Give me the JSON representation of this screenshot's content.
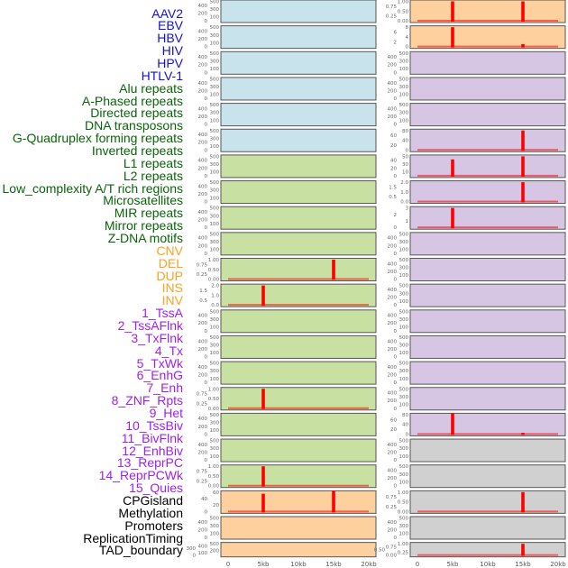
{
  "chart_data": {
    "type": "bar",
    "xlabel": "",
    "x_ticks": [
      "0",
      "5kb",
      "10kb",
      "15kb",
      "20kb"
    ],
    "x_tick_values_kb": [
      0,
      5,
      10,
      15,
      20
    ],
    "xlim_kb": [
      0,
      20
    ],
    "group_colors": {
      "virus": {
        "text": "#1010e0",
        "panel": "#c8e3ec"
      },
      "repeat": {
        "text": "#0a640a",
        "panel": "#c8e0a2"
      },
      "sv": {
        "text": "#ffa020",
        "panel": "#fdd09e"
      },
      "chromhmm": {
        "text": "#a020f0",
        "panel": "#d6c6e3"
      },
      "other": {
        "text": "#000000",
        "panel": "#d0d0d0"
      }
    },
    "bar_color": "#ff0000",
    "columns": [
      [
        {
          "label": "AAV2",
          "group": "virus",
          "ticks": [
            "0",
            "100",
            "200",
            "300",
            "400",
            "500"
          ],
          "ymax": 500,
          "bars": []
        },
        {
          "label": "EBV",
          "group": "virus",
          "ticks": [
            "0",
            "100",
            "200",
            "300",
            "400",
            "500"
          ],
          "ymax": 500,
          "bars": []
        },
        {
          "label": "HBV",
          "group": "virus",
          "ticks": [
            "0",
            "100",
            "200",
            "300",
            "400",
            "500"
          ],
          "ymax": 500,
          "bars": []
        },
        {
          "label": "HIV",
          "group": "virus",
          "ticks": [
            "0",
            "100",
            "200",
            "300",
            "400",
            "500"
          ],
          "ymax": 500,
          "bars": []
        },
        {
          "label": "HPV",
          "group": "virus",
          "ticks": [
            "0",
            "100",
            "200",
            "300",
            "400",
            "500"
          ],
          "ymax": 500,
          "bars": []
        },
        {
          "label": "HTLV-1",
          "group": "virus",
          "ticks": [
            "0",
            "100",
            "200",
            "300",
            "400",
            "500"
          ],
          "ymax": 500,
          "bars": []
        },
        {
          "label": "Alu repeats",
          "group": "repeat",
          "ticks": [
            "0",
            "100",
            "200",
            "300",
            "400",
            "500"
          ],
          "ymax": 500,
          "bars": []
        },
        {
          "label": "A-Phased repeats",
          "group": "repeat",
          "ticks": [
            "0",
            "100",
            "200",
            "300",
            "400",
            "500"
          ],
          "ymax": 500,
          "bars": []
        },
        {
          "label": "Directed repeats",
          "group": "repeat",
          "ticks": [
            "0",
            "100",
            "200",
            "300",
            "400",
            "500"
          ],
          "ymax": 500,
          "bars": []
        },
        {
          "label": "DNA transposons",
          "group": "repeat",
          "ticks": [
            "0",
            "100",
            "200",
            "300",
            "400",
            "500"
          ],
          "ymax": 500,
          "bars": []
        },
        {
          "label": "G-Quadruplex forming repeats",
          "group": "repeat",
          "ticks": [
            "0.00",
            "0.25",
            "0.50",
            "0.75",
            "1.00"
          ],
          "ymax": 1,
          "bars": [
            [
              15,
              1
            ]
          ]
        },
        {
          "label": "Inverted repeats",
          "group": "repeat",
          "ticks": [
            "0.0",
            "0.5",
            "1.0",
            "1.5",
            "2.0"
          ],
          "ymax": 2,
          "bars": [
            [
              5,
              2
            ]
          ]
        },
        {
          "label": "L1 repeats",
          "group": "repeat",
          "ticks": [
            "0",
            "100",
            "200",
            "300",
            "400",
            "500"
          ],
          "ymax": 500,
          "bars": []
        },
        {
          "label": "L2 repeats",
          "group": "repeat",
          "ticks": [
            "0",
            "100",
            "200",
            "300",
            "400",
            "500"
          ],
          "ymax": 500,
          "bars": []
        },
        {
          "label": "Low_complexity A/T rich regions",
          "group": "repeat",
          "ticks": [
            "0",
            "100",
            "200",
            "300",
            "400",
            "500"
          ],
          "ymax": 500,
          "bars": []
        },
        {
          "label": "Microsatellites",
          "group": "repeat",
          "ticks": [
            "0.00",
            "0.25",
            "0.50",
            "0.75",
            "1.00"
          ],
          "ymax": 1,
          "bars": [
            [
              5,
              1
            ]
          ]
        },
        {
          "label": "MIR repeats",
          "group": "repeat",
          "ticks": [
            "0",
            "100",
            "200",
            "300",
            "400",
            "500"
          ],
          "ymax": 500,
          "bars": []
        },
        {
          "label": "Mirror repeats",
          "group": "repeat",
          "ticks": [
            "0",
            "100",
            "200",
            "300",
            "400",
            "500"
          ],
          "ymax": 500,
          "bars": []
        },
        {
          "label": "Z-DNA motifs",
          "group": "repeat",
          "ticks": [
            "0.00",
            "0.25",
            "0.50",
            "0.75",
            "1.00"
          ],
          "ymax": 1,
          "bars": [
            [
              5,
              1
            ]
          ]
        },
        {
          "label": "CNV",
          "group": "sv",
          "ticks": [
            "0",
            "20",
            "40",
            "60"
          ],
          "ymax": 75,
          "bars": [
            [
              5,
              55
            ],
            [
              15,
              75
            ]
          ]
        },
        {
          "label": "DEL",
          "group": "sv",
          "ticks": [
            "0",
            "100",
            "200",
            "300",
            "400",
            "500"
          ],
          "ymax": 500,
          "bars": []
        },
        {
          "label": "DUP",
          "group": "sv",
          "ticks": [
            "0",
            "100",
            "200",
            "300",
            "400",
            "500"
          ],
          "ymax": 500,
          "bars": []
        }
      ],
      [
        {
          "label": "INS",
          "group": "sv",
          "ticks": [
            "0.00",
            "0.25",
            "0.50",
            "0.75",
            "1.00"
          ],
          "ymax": 1,
          "bars": [
            [
              5,
              1
            ],
            [
              15,
              1
            ]
          ]
        },
        {
          "label": "INV",
          "group": "sv",
          "ticks": [
            "0",
            "2",
            "4",
            "6",
            "8"
          ],
          "ymax": 8,
          "bars": [
            [
              5,
              8
            ],
            [
              15,
              1
            ]
          ]
        },
        {
          "label": "1_TssA",
          "group": "chromhmm",
          "ticks": [
            "0",
            "100",
            "200",
            "300",
            "400",
            "500"
          ],
          "ymax": 500,
          "bars": []
        },
        {
          "label": "2_TssAFlnk",
          "group": "chromhmm",
          "ticks": [
            "0",
            "100",
            "200",
            "300",
            "400",
            "500"
          ],
          "ymax": 500,
          "bars": []
        },
        {
          "label": "3_TxFlnk",
          "group": "chromhmm",
          "ticks": [
            "0",
            "100",
            "200",
            "300",
            "400",
            "500"
          ],
          "ymax": 500,
          "bars": []
        },
        {
          "label": "4_Tx",
          "group": "chromhmm",
          "ticks": [
            "0",
            "20",
            "40",
            "60",
            "80"
          ],
          "ymax": 80,
          "bars": [
            [
              15,
              80
            ]
          ]
        },
        {
          "label": "5_TxWk",
          "group": "chromhmm",
          "ticks": [
            "0",
            "10",
            "20",
            "30",
            "40",
            "50"
          ],
          "ymax": 50,
          "bars": [
            [
              5,
              42
            ],
            [
              15,
              50
            ]
          ]
        },
        {
          "label": "6_EnhG",
          "group": "chromhmm",
          "ticks": [
            "0.0",
            "0.5",
            "1.0",
            "1.5",
            "2.0"
          ],
          "ymax": 2,
          "bars": [
            [
              15,
              2
            ]
          ]
        },
        {
          "label": "7_Enh",
          "group": "chromhmm",
          "ticks": [
            "0",
            "1",
            "2",
            "3"
          ],
          "ymax": 3,
          "bars": [
            [
              5,
              3
            ]
          ]
        },
        {
          "label": "8_ZNF_Rpts",
          "group": "chromhmm",
          "ticks": [
            "0",
            "100",
            "200",
            "300",
            "400",
            "500"
          ],
          "ymax": 500,
          "bars": []
        },
        {
          "label": "9_Het",
          "group": "chromhmm",
          "ticks": [
            "0",
            "100",
            "200",
            "300",
            "400",
            "500"
          ],
          "ymax": 500,
          "bars": []
        },
        {
          "label": "10_TssBiv",
          "group": "chromhmm",
          "ticks": [
            "0",
            "100",
            "200",
            "300",
            "400",
            "500"
          ],
          "ymax": 500,
          "bars": []
        },
        {
          "label": "11_BivFlnk",
          "group": "chromhmm",
          "ticks": [
            "0",
            "100",
            "200",
            "300",
            "400",
            "500"
          ],
          "ymax": 500,
          "bars": []
        },
        {
          "label": "12_EnhBiv",
          "group": "chromhmm",
          "ticks": [
            "0",
            "100",
            "200",
            "300",
            "400",
            "500"
          ],
          "ymax": 500,
          "bars": []
        },
        {
          "label": "13_ReprPC",
          "group": "chromhmm",
          "ticks": [
            "0",
            "100",
            "200",
            "300",
            "400",
            "500"
          ],
          "ymax": 500,
          "bars": []
        },
        {
          "label": "14_ReprPCWk",
          "group": "chromhmm",
          "ticks": [
            "0",
            "100",
            "200",
            "300",
            "400",
            "500"
          ],
          "ymax": 500,
          "bars": []
        },
        {
          "label": "15_Quies",
          "group": "chromhmm",
          "ticks": [
            "0",
            "20",
            "40",
            "60",
            "80"
          ],
          "ymax": 90,
          "bars": [
            [
              5,
              90
            ],
            [
              15,
              5
            ]
          ]
        },
        {
          "label": "CPGisland",
          "group": "other",
          "ticks": [
            "0",
            "100",
            "200",
            "300",
            "400",
            "500"
          ],
          "ymax": 500,
          "bars": []
        },
        {
          "label": "Methylation",
          "group": "other",
          "ticks": [
            "0",
            "100",
            "200",
            "300",
            "400",
            "500"
          ],
          "ymax": 500,
          "bars": []
        },
        {
          "label": "Promoters",
          "group": "other",
          "ticks": [
            "0.00",
            "0.25",
            "0.50",
            "0.75",
            "1.00"
          ],
          "ymax": 1,
          "bars": [
            [
              15,
              1
            ]
          ]
        },
        {
          "label": "ReplicationTiming",
          "group": "other",
          "ticks": [
            "0",
            "100",
            "200",
            "300",
            "400",
            "500"
          ],
          "ymax": 500,
          "bars": []
        },
        {
          "label": "TAD_boundary",
          "group": "other",
          "ticks": [
            "0.00",
            "0.25",
            "0.50",
            "0.75",
            "1.00"
          ],
          "ymax": 1,
          "bars": [
            [
              15,
              1
            ]
          ]
        }
      ]
    ]
  }
}
